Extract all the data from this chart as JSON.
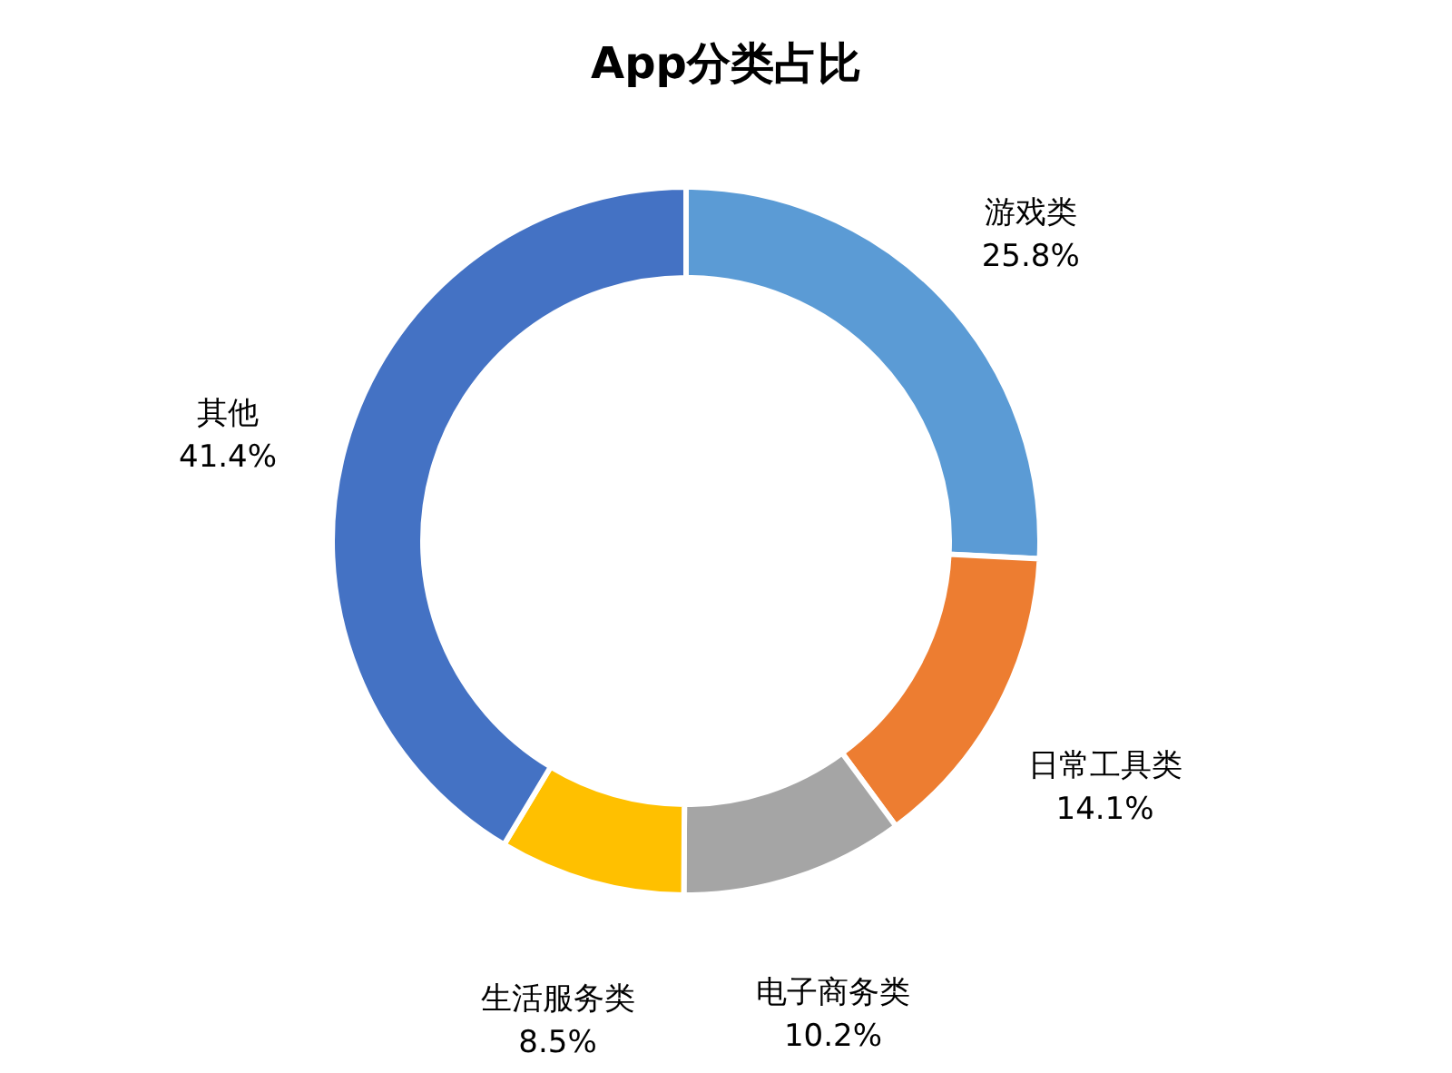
{
  "chart_data": {
    "type": "donut",
    "title": "App分类占比",
    "categories": [
      "游戏类",
      "日常工具类",
      "电子商务类",
      "生活服务类",
      "其他"
    ],
    "values": [
      25.8,
      14.1,
      10.2,
      8.5,
      41.4
    ],
    "value_labels": [
      "25.8%",
      "14.1%",
      "10.2%",
      "8.5%",
      "41.4%"
    ],
    "colors": [
      "#5b9bd5",
      "#ed7d31",
      "#a5a5a5",
      "#ffc000",
      "#4472c4"
    ],
    "legend": false
  }
}
